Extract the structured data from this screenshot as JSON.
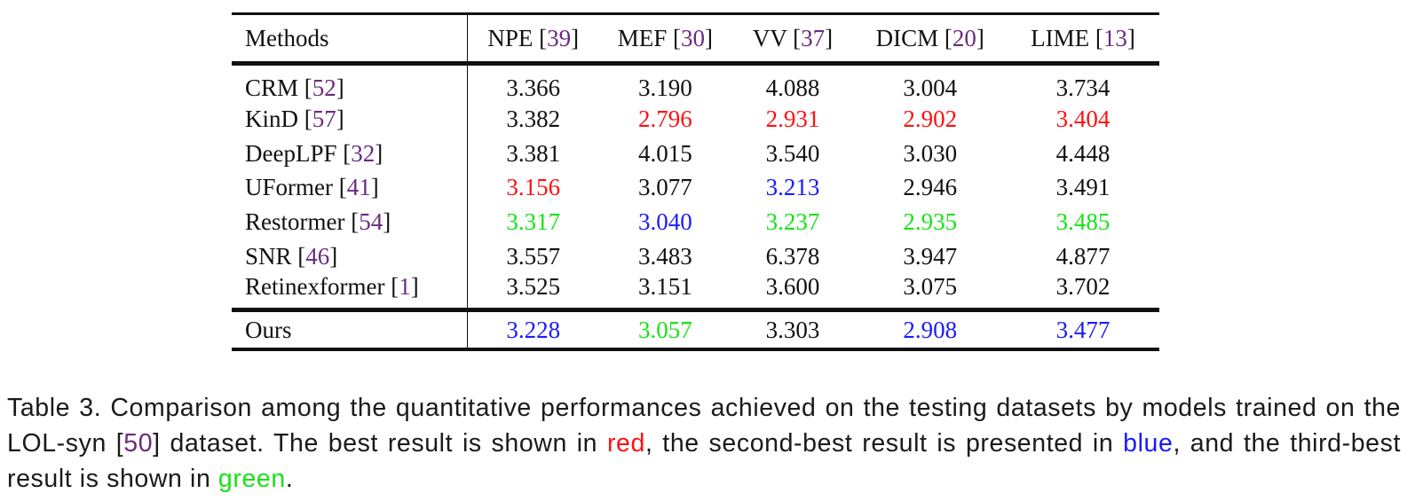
{
  "table": {
    "headers": [
      {
        "name": "Methods",
        "ref": ""
      },
      {
        "name": "NPE [",
        "ref": "39",
        "close": "]"
      },
      {
        "name": "MEF [",
        "ref": "30",
        "close": "]"
      },
      {
        "name": "VV [",
        "ref": "37",
        "close": "]"
      },
      {
        "name": "DICM [",
        "ref": "20",
        "close": "]"
      },
      {
        "name": "LIME [",
        "ref": "13",
        "close": "]"
      }
    ],
    "rows": [
      {
        "method": "CRM [",
        "ref": "52",
        "close": "]",
        "values": [
          "3.366",
          "3.190",
          "4.088",
          "3.004",
          "3.734"
        ],
        "colors": [
          "",
          "",
          "",
          "",
          ""
        ]
      },
      {
        "method": "KinD [",
        "ref": "57",
        "close": "]",
        "values": [
          "3.382",
          "2.796",
          "2.931",
          "2.902",
          "3.404"
        ],
        "colors": [
          "",
          "#ff1010",
          "#ff1010",
          "#ff1010",
          "#ff1010"
        ]
      },
      {
        "method": "DeepLPF [",
        "ref": "32",
        "close": "]",
        "values": [
          "3.381",
          "4.015",
          "3.540",
          "3.030",
          "4.448"
        ],
        "colors": [
          "",
          "",
          "",
          "",
          ""
        ]
      },
      {
        "method": "UFormer [",
        "ref": "41",
        "close": "]",
        "values": [
          "3.156",
          "3.077",
          "3.213",
          "2.946",
          "3.491"
        ],
        "colors": [
          "#ff1010",
          "",
          "#1a1aff",
          "",
          ""
        ]
      },
      {
        "method": "Restormer [",
        "ref": "54",
        "close": "]",
        "values": [
          "3.317",
          "3.040",
          "3.237",
          "2.935",
          "3.485"
        ],
        "colors": [
          "#17e317",
          "#1a1aff",
          "#17e317",
          "#17e317",
          "#17e317"
        ]
      },
      {
        "method": "SNR [",
        "ref": "46",
        "close": "]",
        "values": [
          "3.557",
          "3.483",
          "6.378",
          "3.947",
          "4.877"
        ],
        "colors": [
          "",
          "",
          "",
          "",
          ""
        ]
      },
      {
        "method": "Retinexformer [",
        "ref": "1",
        "close": "]",
        "values": [
          "3.525",
          "3.151",
          "3.600",
          "3.075",
          "3.702"
        ],
        "colors": [
          "",
          "",
          "",
          "",
          ""
        ]
      }
    ],
    "ours": {
      "method": "Ours",
      "values": [
        "3.228",
        "3.057",
        "3.303",
        "2.908",
        "3.477"
      ],
      "colors": [
        "#1a1aff",
        "#17e317",
        "",
        "#1a1aff",
        "#1a1aff"
      ]
    }
  },
  "caption": {
    "p1": "Table 3. Comparison among the quantitative performances achieved on the testing datasets by models trained on the LOL-syn [",
    "ref": "50",
    "p2": "] dataset. The best result is shown in ",
    "red": "red",
    "p3": ", the second-best result is presented in ",
    "blue": "blue",
    "p4": ", and the third-best result is shown in ",
    "green": "green",
    "p5": "."
  }
}
